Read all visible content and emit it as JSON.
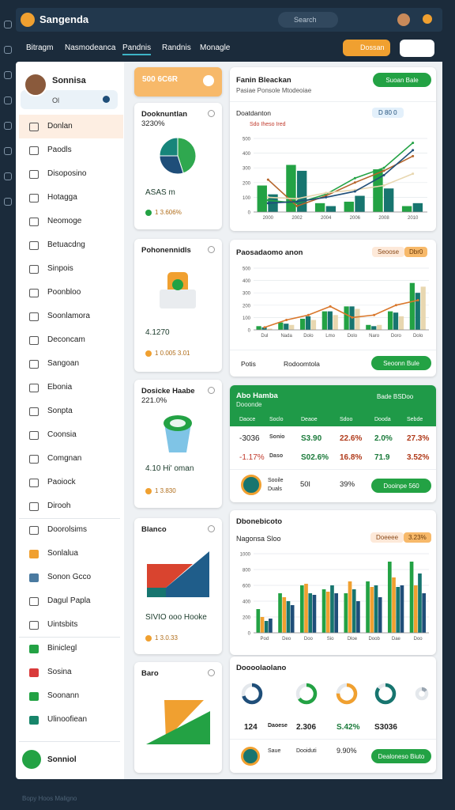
{
  "app": {
    "name": "Sangenda",
    "search": "Search",
    "footer": "Bopy Hoos Maligno"
  },
  "nav": {
    "tabs": [
      "Bitragm",
      "Nasmodeanca",
      "Pandnis",
      "Randnis",
      "Monagle"
    ],
    "active": 2,
    "button": "Dossan"
  },
  "profile": {
    "name": "Sonnisa",
    "status": "Ol"
  },
  "menu": [
    "Donlan",
    "Paodls",
    "Disoposino",
    "Hotagga",
    "Neomoge",
    "Betuacdng",
    "Sinpois",
    "Poonbloo",
    "Soonlamora",
    "Deconcam",
    "Sangoan",
    "Ebonia",
    "Sonpta",
    "Coonsia",
    "Comgnan",
    "Paoiock",
    "Dirooh",
    "Doorolsims",
    "Sonlalua",
    "Sonon Gcco",
    "Dagul Papla",
    "Uintsbits",
    "Biniclegl",
    "Sosina",
    "Soonann",
    "Ulinoofiean"
  ],
  "menu_footer": "Sonniol",
  "highlight": {
    "title": "500 6C6R"
  },
  "cards": [
    {
      "title": "Dooknuntlan",
      "value": "3230%",
      "amount": "ASAS m",
      "foot": "1 3.606%",
      "pie": {
        "values": [
          45,
          30,
          25
        ],
        "colors": [
          "#2fa84f",
          "#1f4e79",
          "#17857a"
        ]
      }
    },
    {
      "title": "Pohonennidls",
      "amount": "4.1270",
      "foot": "1 0.005  3.01"
    },
    {
      "title": "Dosicke Haabe",
      "value": "221.0%",
      "amount": "4.10 Hi' oman",
      "foot": "1 3.830"
    },
    {
      "title": "Blanco",
      "amount": "SIVIO ooo  Hooke",
      "foot": "1 3.0.33"
    },
    {
      "title": "Baro"
    }
  ],
  "trend": {
    "title": "Fanin Bleackan",
    "subtitle": "Pasiae Ponsole Mtodeoiae",
    "button": "Suoan Bale",
    "legend": "Doatdanton",
    "tag": "D 80 0",
    "label": "Sdo Iheso Ired",
    "ylim": [
      0,
      500
    ],
    "yticks": [
      0,
      100,
      200,
      300,
      400,
      500
    ],
    "categories": [
      "2000",
      "2002",
      "2004",
      "2006",
      "2008",
      "2010"
    ],
    "bars": [
      {
        "color": "#23a244",
        "values": [
          180,
          320,
          60,
          70,
          290,
          40
        ]
      },
      {
        "color": "#17756f",
        "values": [
          120,
          280,
          40,
          110,
          160,
          60
        ]
      }
    ],
    "lines": [
      {
        "color": "#23a244",
        "values": [
          80,
          60,
          120,
          230,
          300,
          470
        ]
      },
      {
        "color": "#b5652b",
        "values": [
          220,
          40,
          110,
          200,
          280,
          380
        ]
      },
      {
        "color": "#e8d7b0",
        "values": [
          100,
          90,
          130,
          150,
          180,
          260
        ]
      },
      {
        "color": "#1f4e79",
        "values": [
          60,
          70,
          100,
          140,
          250,
          420
        ]
      }
    ]
  },
  "compare": {
    "title": "Paosadaomo anon",
    "tags": [
      "Seoose",
      "Dbr0"
    ],
    "legend": "Potis",
    "legend2": "Rodoomtola",
    "button": "Seoonn Bule",
    "ylim": [
      0,
      500
    ],
    "yticks": [
      0,
      100,
      200,
      300,
      400,
      500
    ],
    "categories": [
      "Dul",
      "Nada",
      "Dolo",
      "Lmo",
      "Dolo",
      "Naro",
      "Doro",
      "Dolo"
    ],
    "bars": [
      {
        "color": "#23a244",
        "values": [
          30,
          60,
          90,
          150,
          190,
          40,
          150,
          380
        ]
      },
      {
        "color": "#17756f",
        "values": [
          20,
          50,
          110,
          150,
          190,
          30,
          140,
          300
        ]
      },
      {
        "color": "#e8d7b0",
        "values": [
          10,
          40,
          80,
          120,
          170,
          40,
          110,
          350
        ]
      }
    ],
    "lines": [
      {
        "color": "#d9772b",
        "values": [
          20,
          80,
          120,
          190,
          100,
          120,
          200,
          240
        ]
      }
    ]
  },
  "table": {
    "title": "Abo Hamba",
    "subtitle": "Dooonde",
    "right": "Bade BSDoo",
    "columns": [
      "Daoce",
      "Soclo",
      "Deaoe",
      "Sdoo",
      "Dooda",
      "Sebde"
    ],
    "rows": [
      [
        "-3036",
        "Sonio",
        "S3.90",
        "22.6%",
        "2.0%",
        "27.3%"
      ],
      [
        "-1.17%",
        "Daso",
        "S02.6%",
        "16.8%",
        "71.9",
        "3.52%"
      ]
    ],
    "foot": [
      "Sooile",
      "Duals",
      "50l",
      "39%"
    ],
    "button": "Dooinpe 560"
  },
  "groups": {
    "title": "Dbonebicoto",
    "subtitle": "Nagonsa Sloo",
    "tags": [
      "Doeeee",
      "3.23%"
    ],
    "ylim": [
      0,
      1000
    ],
    "yticks": [
      0,
      200,
      400,
      600,
      800,
      1000
    ],
    "categories": [
      "Pod",
      "Deo",
      "Doo",
      "Sio",
      "Dloe",
      "Doob",
      "Dae",
      "Doo"
    ],
    "bars": [
      {
        "color": "#23a244",
        "values": [
          300,
          500,
          600,
          550,
          500,
          650,
          900,
          900
        ]
      },
      {
        "color": "#f0a030",
        "values": [
          200,
          450,
          620,
          520,
          650,
          580,
          700,
          600
        ]
      },
      {
        "color": "#17756f",
        "values": [
          150,
          400,
          500,
          600,
          550,
          600,
          580,
          750
        ]
      },
      {
        "color": "#1f4e79",
        "values": [
          180,
          350,
          480,
          500,
          400,
          450,
          600,
          500
        ]
      }
    ]
  },
  "rings": {
    "title": "Doooolaolano",
    "values": [
      70,
      65,
      75,
      85,
      15
    ],
    "colors": [
      "#1f4e79",
      "#23a244",
      "#f0a030",
      "#17756f",
      "#9aa5b1"
    ],
    "row": [
      "124",
      "Daoese",
      "2.306",
      "S.42%",
      "S3036"
    ],
    "foot": [
      "Saue",
      "Dooiduti",
      "9.90%"
    ],
    "button": "Dealoneso Biuto"
  }
}
